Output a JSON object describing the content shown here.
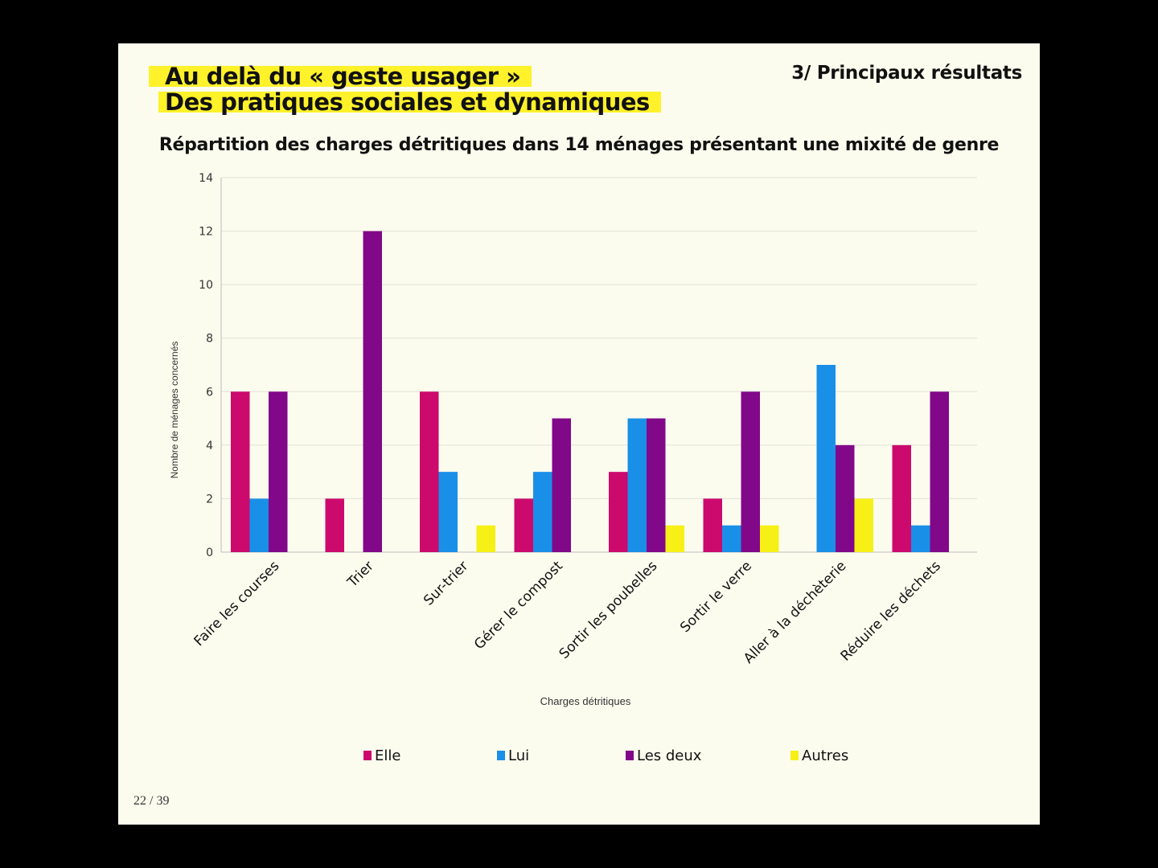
{
  "slide": {
    "title_line1": "Au delà du « geste usager »",
    "title_line2": "Des pratiques sociales et dynamiques",
    "section": "3/ Principaux résultats",
    "page_number": "22 / 39"
  },
  "chart_data": {
    "type": "bar",
    "title": "Répartition des charges détritiques dans 14 ménages présentant une mixité de genre",
    "xlabel": "Charges détritiques",
    "ylabel": "Nombre de ménages concernés",
    "ylim": [
      0,
      14
    ],
    "yticks": [
      0,
      2,
      4,
      6,
      8,
      10,
      12,
      14
    ],
    "grid": true,
    "legend_position": "bottom",
    "categories": [
      "Faire les courses",
      "Trier",
      "Sur-trier",
      "Gérer le compost",
      "Sortir les poubelles",
      "Sortir le verre",
      "Aller à la déchèterie",
      "Réduire les déchets"
    ],
    "series": [
      {
        "name": "Elle",
        "color": "#cc0a6e",
        "values": [
          6,
          2,
          6,
          2,
          3,
          2,
          0,
          4
        ]
      },
      {
        "name": "Lui",
        "color": "#1a8fe8",
        "values": [
          2,
          0,
          3,
          3,
          5,
          1,
          7,
          1
        ]
      },
      {
        "name": "Les deux",
        "color": "#82088a",
        "values": [
          6,
          12,
          0,
          5,
          5,
          6,
          4,
          6
        ]
      },
      {
        "name": "Autres",
        "color": "#f6f016",
        "values": [
          0,
          0,
          1,
          0,
          1,
          1,
          2,
          0
        ]
      }
    ]
  }
}
